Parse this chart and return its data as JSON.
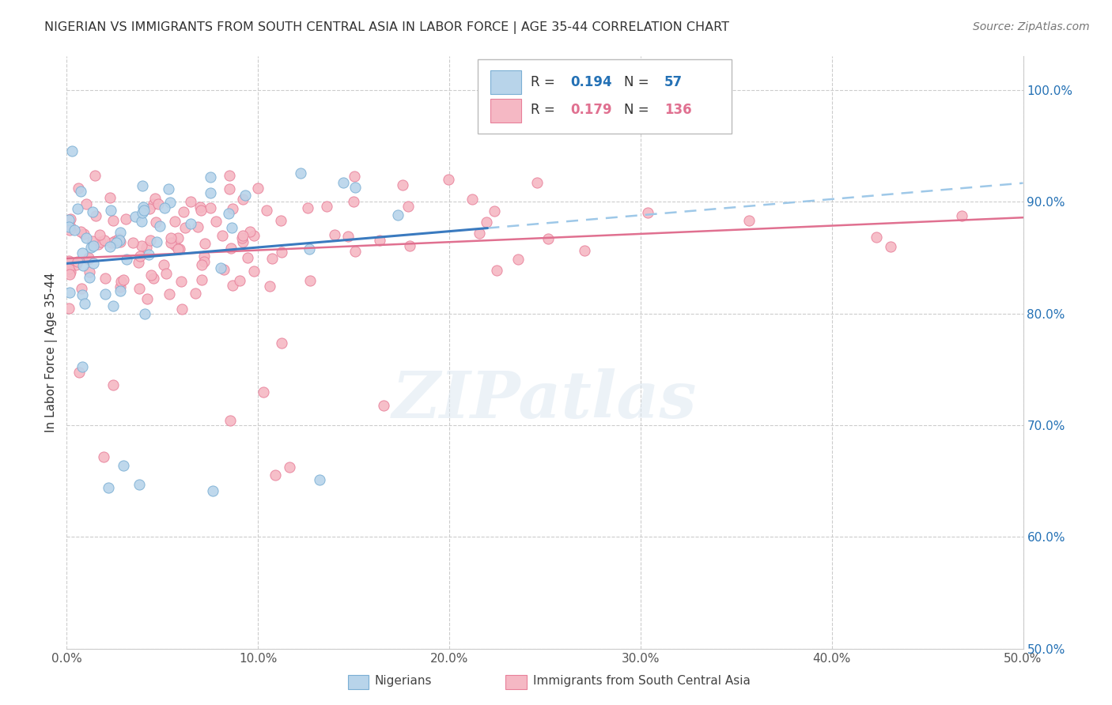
{
  "title": "NIGERIAN VS IMMIGRANTS FROM SOUTH CENTRAL ASIA IN LABOR FORCE | AGE 35-44 CORRELATION CHART",
  "source": "Source: ZipAtlas.com",
  "ylabel": "In Labor Force | Age 35-44",
  "xlim": [
    0.0,
    0.5
  ],
  "ylim": [
    0.5,
    1.03
  ],
  "xticks": [
    0.0,
    0.1,
    0.2,
    0.3,
    0.4,
    0.5
  ],
  "xticklabels": [
    "0.0%",
    "10.0%",
    "20.0%",
    "30.0%",
    "40.0%",
    "50.0%"
  ],
  "yticks_right": [
    0.5,
    0.6,
    0.7,
    0.8,
    0.9,
    1.0
  ],
  "yticklabels_right": [
    "50.0%",
    "60.0%",
    "70.0%",
    "80.0%",
    "90.0%",
    "100.0%"
  ],
  "nigerians_color": "#b8d4ea",
  "nigerians_edge_color": "#7bafd4",
  "immigrants_color": "#f5b8c4",
  "immigrants_edge_color": "#e8809a",
  "nigerians_R": 0.194,
  "nigerians_N": 57,
  "immigrants_R": 0.179,
  "immigrants_N": 136,
  "nig_line_color": "#3a7abf",
  "nig_dash_color": "#9ec8e8",
  "imm_line_color": "#e07090",
  "watermark_text": "ZIPatlas",
  "legend_box_color": "#cccccc",
  "nig_legend_R_color": "#2471b5",
  "nig_legend_N_color": "#2471b5",
  "imm_legend_R_color": "#e07090",
  "imm_legend_N_color": "#e07090"
}
